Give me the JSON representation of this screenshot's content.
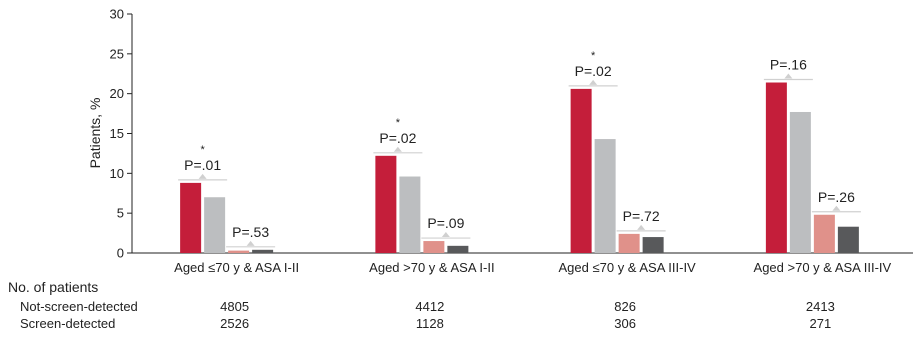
{
  "chart_data": {
    "type": "bar",
    "ylabel": "Patients, %",
    "ylim": [
      0,
      30
    ],
    "yticks": [
      0,
      5,
      10,
      15,
      20,
      25,
      30
    ],
    "grid": false,
    "categories": [
      "Aged ≤70 y & ASA I-II",
      "Aged >70 y & ASA I-II",
      "Aged ≤70 y & ASA III-IV",
      "Aged >70 y & ASA III-IV"
    ],
    "series": [
      {
        "values": [
          8.8,
          12.2,
          20.6,
          21.4
        ],
        "color": "#c41e3a"
      },
      {
        "values": [
          7.0,
          9.6,
          14.3,
          17.7
        ],
        "color": "#bcbec0"
      },
      {
        "values": [
          0.3,
          1.5,
          2.4,
          4.8
        ],
        "color": "#e0918a"
      },
      {
        "values": [
          0.4,
          0.9,
          2.0,
          3.3
        ],
        "color": "#58595b"
      }
    ],
    "annotations": [
      {
        "category": 0,
        "pair": 0,
        "text": "P=.01",
        "star": "*"
      },
      {
        "category": 0,
        "pair": 1,
        "text": "P=.53",
        "star": ""
      },
      {
        "category": 1,
        "pair": 0,
        "text": "P=.02",
        "star": "*"
      },
      {
        "category": 1,
        "pair": 1,
        "text": "P=.09",
        "star": ""
      },
      {
        "category": 2,
        "pair": 0,
        "text": "P=.02",
        "star": "*"
      },
      {
        "category": 2,
        "pair": 1,
        "text": "P=.72",
        "star": ""
      },
      {
        "category": 3,
        "pair": 0,
        "text": "P=.16",
        "star": ""
      },
      {
        "category": 3,
        "pair": 1,
        "text": "P=.26",
        "star": ""
      }
    ]
  },
  "table": {
    "title": "No. of patients",
    "rows": [
      {
        "label": "Not-screen-detected",
        "values": [
          "4805",
          "4412",
          "826",
          "2413"
        ]
      },
      {
        "label": "Screen-detected",
        "values": [
          "2526",
          "1128",
          "306",
          "271"
        ]
      }
    ]
  }
}
